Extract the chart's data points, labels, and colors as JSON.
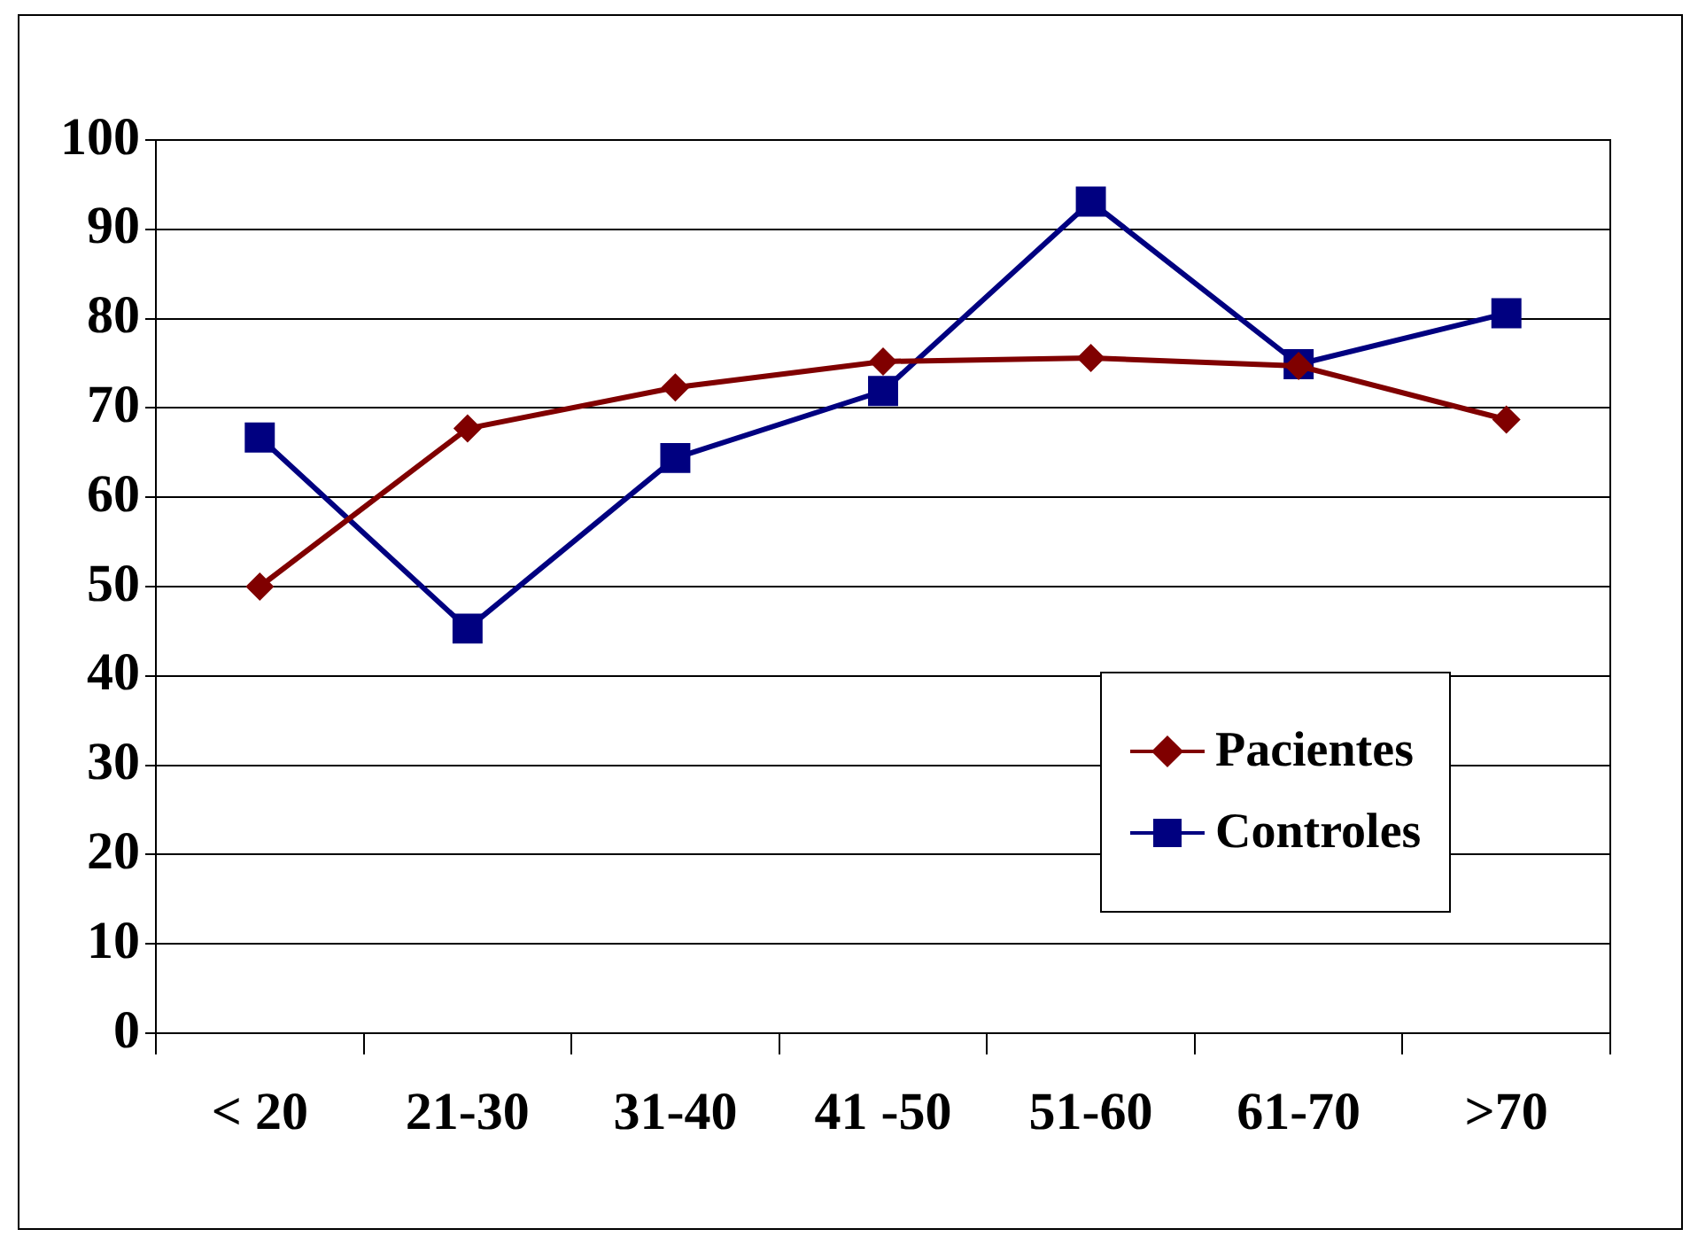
{
  "chart_data": {
    "type": "line",
    "categories": [
      "< 20",
      "21-30",
      "31-40",
      "41 -50",
      "51-60",
      "61-70",
      ">70"
    ],
    "series": [
      {
        "name": "Pacientes",
        "color": "#800000",
        "marker": "diamond",
        "values": [
          50,
          67.7,
          72.3,
          75.2,
          75.6,
          74.7,
          68.7
        ]
      },
      {
        "name": "Controles",
        "color": "#000080",
        "marker": "square",
        "values": [
          66.7,
          45.3,
          64.4,
          71.9,
          93.1,
          74.9,
          80.6
        ]
      }
    ],
    "ylim": [
      0,
      100
    ],
    "yticks": [
      0,
      10,
      20,
      30,
      40,
      50,
      60,
      70,
      80,
      90,
      100
    ],
    "grid": "y",
    "legend": "bottom right",
    "line_style": "solid"
  }
}
